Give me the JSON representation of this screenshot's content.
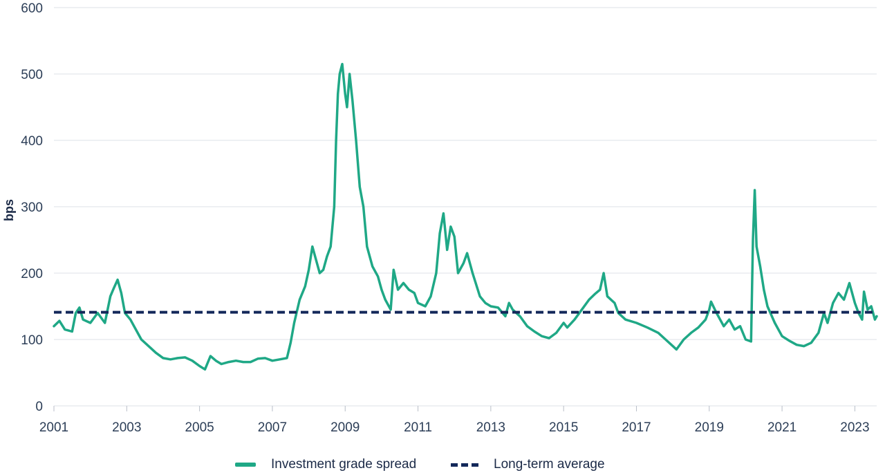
{
  "chart_data": {
    "type": "line",
    "title": "",
    "xlabel": "",
    "ylabel": "bps",
    "xlim": [
      2001.0,
      2023.6
    ],
    "ylim": [
      0,
      600
    ],
    "y_ticks": [
      0,
      100,
      200,
      300,
      400,
      500,
      600
    ],
    "x_ticks": [
      "2001",
      "2003",
      "2005",
      "2007",
      "2009",
      "2011",
      "2013",
      "2015",
      "2017",
      "2019",
      "2021",
      "2023"
    ],
    "grid": "horizontal",
    "legend_position": "bottom-center",
    "series": [
      {
        "name": "Investment grade spread",
        "color": "#1fa886",
        "style": "solid",
        "points": [
          [
            2001.0,
            120
          ],
          [
            2001.15,
            128
          ],
          [
            2001.3,
            115
          ],
          [
            2001.5,
            112
          ],
          [
            2001.6,
            140
          ],
          [
            2001.7,
            148
          ],
          [
            2001.8,
            130
          ],
          [
            2002.0,
            125
          ],
          [
            2002.2,
            140
          ],
          [
            2002.4,
            125
          ],
          [
            2002.55,
            165
          ],
          [
            2002.65,
            178
          ],
          [
            2002.75,
            190
          ],
          [
            2002.85,
            170
          ],
          [
            2002.95,
            140
          ],
          [
            2003.1,
            130
          ],
          [
            2003.25,
            115
          ],
          [
            2003.4,
            100
          ],
          [
            2003.6,
            90
          ],
          [
            2003.8,
            80
          ],
          [
            2004.0,
            72
          ],
          [
            2004.2,
            70
          ],
          [
            2004.4,
            72
          ],
          [
            2004.6,
            73
          ],
          [
            2004.8,
            68
          ],
          [
            2005.0,
            60
          ],
          [
            2005.15,
            55
          ],
          [
            2005.3,
            75
          ],
          [
            2005.45,
            68
          ],
          [
            2005.6,
            63
          ],
          [
            2005.8,
            66
          ],
          [
            2006.0,
            68
          ],
          [
            2006.2,
            66
          ],
          [
            2006.4,
            66
          ],
          [
            2006.6,
            71
          ],
          [
            2006.8,
            72
          ],
          [
            2007.0,
            68
          ],
          [
            2007.2,
            70
          ],
          [
            2007.4,
            72
          ],
          [
            2007.5,
            95
          ],
          [
            2007.6,
            125
          ],
          [
            2007.75,
            160
          ],
          [
            2007.9,
            180
          ],
          [
            2008.0,
            205
          ],
          [
            2008.1,
            240
          ],
          [
            2008.2,
            220
          ],
          [
            2008.3,
            200
          ],
          [
            2008.4,
            205
          ],
          [
            2008.5,
            225
          ],
          [
            2008.6,
            240
          ],
          [
            2008.7,
            300
          ],
          [
            2008.75,
            400
          ],
          [
            2008.8,
            470
          ],
          [
            2008.85,
            500
          ],
          [
            2008.92,
            515
          ],
          [
            2009.0,
            470
          ],
          [
            2009.05,
            450
          ],
          [
            2009.12,
            500
          ],
          [
            2009.2,
            460
          ],
          [
            2009.3,
            400
          ],
          [
            2009.4,
            330
          ],
          [
            2009.5,
            300
          ],
          [
            2009.6,
            240
          ],
          [
            2009.75,
            210
          ],
          [
            2009.9,
            195
          ],
          [
            2010.0,
            175
          ],
          [
            2010.1,
            160
          ],
          [
            2010.25,
            145
          ],
          [
            2010.33,
            205
          ],
          [
            2010.45,
            175
          ],
          [
            2010.6,
            185
          ],
          [
            2010.75,
            175
          ],
          [
            2010.9,
            170
          ],
          [
            2011.0,
            155
          ],
          [
            2011.2,
            150
          ],
          [
            2011.35,
            165
          ],
          [
            2011.5,
            200
          ],
          [
            2011.6,
            260
          ],
          [
            2011.7,
            290
          ],
          [
            2011.8,
            235
          ],
          [
            2011.9,
            270
          ],
          [
            2012.0,
            255
          ],
          [
            2012.1,
            200
          ],
          [
            2012.25,
            215
          ],
          [
            2012.35,
            230
          ],
          [
            2012.5,
            200
          ],
          [
            2012.7,
            165
          ],
          [
            2012.85,
            155
          ],
          [
            2013.0,
            150
          ],
          [
            2013.2,
            148
          ],
          [
            2013.4,
            135
          ],
          [
            2013.5,
            155
          ],
          [
            2013.6,
            145
          ],
          [
            2013.8,
            135
          ],
          [
            2014.0,
            120
          ],
          [
            2014.2,
            112
          ],
          [
            2014.4,
            105
          ],
          [
            2014.6,
            102
          ],
          [
            2014.8,
            110
          ],
          [
            2015.0,
            125
          ],
          [
            2015.1,
            118
          ],
          [
            2015.3,
            130
          ],
          [
            2015.5,
            145
          ],
          [
            2015.7,
            160
          ],
          [
            2015.85,
            168
          ],
          [
            2016.0,
            175
          ],
          [
            2016.1,
            200
          ],
          [
            2016.2,
            165
          ],
          [
            2016.4,
            155
          ],
          [
            2016.5,
            140
          ],
          [
            2016.7,
            130
          ],
          [
            2017.0,
            125
          ],
          [
            2017.3,
            118
          ],
          [
            2017.6,
            110
          ],
          [
            2017.8,
            100
          ],
          [
            2018.0,
            90
          ],
          [
            2018.1,
            85
          ],
          [
            2018.3,
            100
          ],
          [
            2018.5,
            110
          ],
          [
            2018.7,
            118
          ],
          [
            2018.9,
            130
          ],
          [
            2019.0,
            145
          ],
          [
            2019.05,
            157
          ],
          [
            2019.2,
            140
          ],
          [
            2019.4,
            120
          ],
          [
            2019.55,
            130
          ],
          [
            2019.7,
            115
          ],
          [
            2019.85,
            120
          ],
          [
            2020.0,
            100
          ],
          [
            2020.15,
            97
          ],
          [
            2020.2,
            250
          ],
          [
            2020.25,
            325
          ],
          [
            2020.3,
            240
          ],
          [
            2020.4,
            210
          ],
          [
            2020.5,
            175
          ],
          [
            2020.6,
            150
          ],
          [
            2020.8,
            125
          ],
          [
            2021.0,
            105
          ],
          [
            2021.2,
            98
          ],
          [
            2021.4,
            92
          ],
          [
            2021.6,
            90
          ],
          [
            2021.8,
            95
          ],
          [
            2022.0,
            110
          ],
          [
            2022.15,
            140
          ],
          [
            2022.25,
            125
          ],
          [
            2022.4,
            155
          ],
          [
            2022.55,
            170
          ],
          [
            2022.7,
            160
          ],
          [
            2022.85,
            185
          ],
          [
            2023.0,
            155
          ],
          [
            2023.1,
            140
          ],
          [
            2023.2,
            130
          ],
          [
            2023.25,
            172
          ],
          [
            2023.35,
            145
          ],
          [
            2023.45,
            150
          ],
          [
            2023.55,
            130
          ],
          [
            2023.6,
            135
          ]
        ]
      },
      {
        "name": "Long-term average",
        "color": "#13285a",
        "style": "dashed",
        "points": [
          [
            2001.0,
            141
          ],
          [
            2023.6,
            141
          ]
        ]
      }
    ]
  }
}
